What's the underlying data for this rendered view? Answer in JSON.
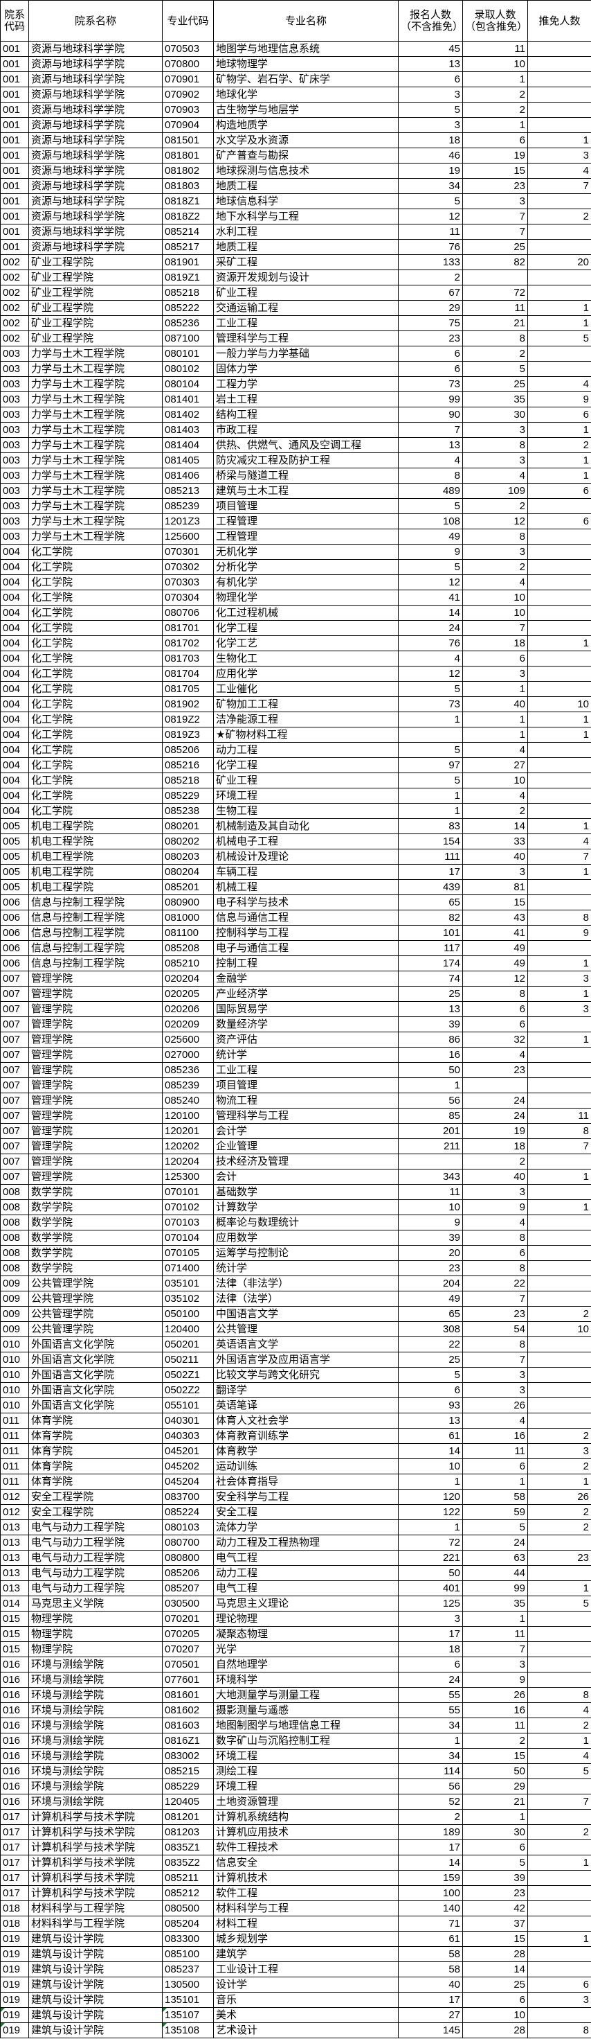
{
  "headers": [
    "院系代码",
    "院系名称",
    "专业代码",
    "专业名称",
    "报名人数（不含推免）",
    "录取人数（包含推免）",
    "推免人数"
  ],
  "marker_color": "#0a7a2a",
  "rows": [
    [
      "001",
      "资源与地球科学学院",
      "070503",
      "地图学与地理信息系统",
      "45",
      "11",
      ""
    ],
    [
      "001",
      "资源与地球科学学院",
      "070800",
      "地球物理学",
      "13",
      "10",
      ""
    ],
    [
      "001",
      "资源与地球科学学院",
      "070901",
      "矿物学、岩石学、矿床学",
      "6",
      "1",
      ""
    ],
    [
      "001",
      "资源与地球科学学院",
      "070902",
      "地球化学",
      "3",
      "2",
      ""
    ],
    [
      "001",
      "资源与地球科学学院",
      "070903",
      "古生物学与地层学",
      "5",
      "2",
      ""
    ],
    [
      "001",
      "资源与地球科学学院",
      "070904",
      "构造地质学",
      "3",
      "1",
      ""
    ],
    [
      "001",
      "资源与地球科学学院",
      "081501",
      "水文学及水资源",
      "18",
      "6",
      "1"
    ],
    [
      "001",
      "资源与地球科学学院",
      "081801",
      "矿产普查与勘探",
      "46",
      "19",
      "3"
    ],
    [
      "001",
      "资源与地球科学学院",
      "081802",
      "地球探测与信息技术",
      "19",
      "15",
      "4"
    ],
    [
      "001",
      "资源与地球科学学院",
      "081803",
      "地质工程",
      "34",
      "23",
      "7"
    ],
    [
      "001",
      "资源与地球科学学院",
      "0818Z1",
      "地球信息科学",
      "5",
      "3",
      ""
    ],
    [
      "001",
      "资源与地球科学学院",
      "0818Z2",
      "地下水科学与工程",
      "12",
      "7",
      "2"
    ],
    [
      "001",
      "资源与地球科学学院",
      "085214",
      "水利工程",
      "11",
      "7",
      ""
    ],
    [
      "001",
      "资源与地球科学学院",
      "085217",
      "地质工程",
      "76",
      "25",
      ""
    ],
    [
      "002",
      "矿业工程学院",
      "081901",
      "采矿工程",
      "133",
      "82",
      "20"
    ],
    [
      "002",
      "矿业工程学院",
      "0819Z1",
      "资源开发规划与设计",
      "2",
      "",
      ""
    ],
    [
      "002",
      "矿业工程学院",
      "085218",
      "矿业工程",
      "67",
      "72",
      ""
    ],
    [
      "002",
      "矿业工程学院",
      "085222",
      "交通运输工程",
      "29",
      "11",
      "1"
    ],
    [
      "002",
      "矿业工程学院",
      "085236",
      "工业工程",
      "75",
      "21",
      "1"
    ],
    [
      "002",
      "矿业工程学院",
      "087100",
      "管理科学与工程",
      "23",
      "8",
      "5"
    ],
    [
      "003",
      "力学与土木工程学院",
      "080101",
      "一般力学与力学基础",
      "6",
      "2",
      ""
    ],
    [
      "003",
      "力学与土木工程学院",
      "080102",
      "固体力学",
      "6",
      "5",
      ""
    ],
    [
      "003",
      "力学与土木工程学院",
      "080104",
      "工程力学",
      "73",
      "25",
      "4"
    ],
    [
      "003",
      "力学与土木工程学院",
      "081401",
      "岩土工程",
      "99",
      "35",
      "9"
    ],
    [
      "003",
      "力学与土木工程学院",
      "081402",
      "结构工程",
      "90",
      "30",
      "6"
    ],
    [
      "003",
      "力学与土木工程学院",
      "081403",
      "市政工程",
      "7",
      "3",
      "1"
    ],
    [
      "003",
      "力学与土木工程学院",
      "081404",
      "供热、供燃气、通风及空调工程",
      "13",
      "8",
      "2"
    ],
    [
      "003",
      "力学与土木工程学院",
      "081405",
      "防灾减灾工程及防护工程",
      "4",
      "3",
      "1"
    ],
    [
      "003",
      "力学与土木工程学院",
      "081406",
      "桥梁与隧道工程",
      "8",
      "4",
      "1"
    ],
    [
      "003",
      "力学与土木工程学院",
      "085213",
      "建筑与土木工程",
      "489",
      "109",
      "6"
    ],
    [
      "003",
      "力学与土木工程学院",
      "085239",
      "项目管理",
      "5",
      "2",
      ""
    ],
    [
      "003",
      "力学与土木工程学院",
      "1201Z3",
      "工程管理",
      "108",
      "12",
      "6"
    ],
    [
      "003",
      "力学与土木工程学院",
      "125600",
      "工程管理",
      "49",
      "8",
      ""
    ],
    [
      "004",
      "化工学院",
      "070301",
      "无机化学",
      "9",
      "3",
      ""
    ],
    [
      "004",
      "化工学院",
      "070302",
      "分析化学",
      "5",
      "2",
      ""
    ],
    [
      "004",
      "化工学院",
      "070303",
      "有机化学",
      "12",
      "4",
      ""
    ],
    [
      "004",
      "化工学院",
      "070304",
      "物理化学",
      "41",
      "10",
      ""
    ],
    [
      "004",
      "化工学院",
      "080706",
      "化工过程机械",
      "14",
      "10",
      ""
    ],
    [
      "004",
      "化工学院",
      "081701",
      "化学工程",
      "24",
      "7",
      ""
    ],
    [
      "004",
      "化工学院",
      "081702",
      "化学工艺",
      "76",
      "18",
      "1"
    ],
    [
      "004",
      "化工学院",
      "081703",
      "生物化工",
      "4",
      "6",
      ""
    ],
    [
      "004",
      "化工学院",
      "081704",
      "应用化学",
      "12",
      "3",
      ""
    ],
    [
      "004",
      "化工学院",
      "081705",
      "工业催化",
      "5",
      "1",
      ""
    ],
    [
      "004",
      "化工学院",
      "081902",
      "矿物加工工程",
      "73",
      "40",
      "10"
    ],
    [
      "004",
      "化工学院",
      "0819Z2",
      "洁净能源工程",
      "1",
      "1",
      "1"
    ],
    [
      "004",
      "化工学院",
      "0819Z3",
      "★矿物材料工程",
      "",
      "1",
      "1"
    ],
    [
      "004",
      "化工学院",
      "085206",
      "动力工程",
      "5",
      "4",
      ""
    ],
    [
      "004",
      "化工学院",
      "085216",
      "化学工程",
      "97",
      "27",
      ""
    ],
    [
      "004",
      "化工学院",
      "085218",
      "矿业工程",
      "5",
      "10",
      ""
    ],
    [
      "004",
      "化工学院",
      "085229",
      "环境工程",
      "1",
      "4",
      ""
    ],
    [
      "004",
      "化工学院",
      "085238",
      "生物工程",
      "1",
      "2",
      ""
    ],
    [
      "005",
      "机电工程学院",
      "080201",
      "机械制造及其自动化",
      "83",
      "14",
      "1"
    ],
    [
      "005",
      "机电工程学院",
      "080202",
      "机械电子工程",
      "154",
      "33",
      "4"
    ],
    [
      "005",
      "机电工程学院",
      "080203",
      "机械设计及理论",
      "111",
      "40",
      "7"
    ],
    [
      "005",
      "机电工程学院",
      "080204",
      "车辆工程",
      "17",
      "3",
      "1"
    ],
    [
      "005",
      "机电工程学院",
      "085201",
      "机械工程",
      "439",
      "81",
      ""
    ],
    [
      "006",
      "信息与控制工程学院",
      "080900",
      "电子科学与技术",
      "65",
      "15",
      ""
    ],
    [
      "006",
      "信息与控制工程学院",
      "081000",
      "信息与通信工程",
      "82",
      "43",
      "8"
    ],
    [
      "006",
      "信息与控制工程学院",
      "081100",
      "控制科学与工程",
      "101",
      "41",
      "9"
    ],
    [
      "006",
      "信息与控制工程学院",
      "085208",
      "电子与通信工程",
      "117",
      "49",
      ""
    ],
    [
      "006",
      "信息与控制工程学院",
      "085210",
      "控制工程",
      "174",
      "49",
      "1"
    ],
    [
      "007",
      "管理学院",
      "020204",
      "金融学",
      "74",
      "12",
      "3"
    ],
    [
      "007",
      "管理学院",
      "020205",
      "产业经济学",
      "25",
      "8",
      "1"
    ],
    [
      "007",
      "管理学院",
      "020206",
      "国际贸易学",
      "13",
      "6",
      "3"
    ],
    [
      "007",
      "管理学院",
      "020209",
      "数量经济学",
      "39",
      "6",
      ""
    ],
    [
      "007",
      "管理学院",
      "025600",
      "资产评估",
      "86",
      "32",
      "1"
    ],
    [
      "007",
      "管理学院",
      "027000",
      "统计学",
      "16",
      "4",
      ""
    ],
    [
      "007",
      "管理学院",
      "085236",
      "工业工程",
      "50",
      "23",
      ""
    ],
    [
      "007",
      "管理学院",
      "085239",
      "项目管理",
      "1",
      "",
      ""
    ],
    [
      "007",
      "管理学院",
      "085240",
      "物流工程",
      "56",
      "24",
      ""
    ],
    [
      "007",
      "管理学院",
      "120100",
      "管理科学与工程",
      "85",
      "24",
      "11"
    ],
    [
      "007",
      "管理学院",
      "120201",
      "会计学",
      "201",
      "19",
      "8"
    ],
    [
      "007",
      "管理学院",
      "120202",
      "企业管理",
      "211",
      "18",
      "7"
    ],
    [
      "007",
      "管理学院",
      "120204",
      "技术经济及管理",
      "",
      "2",
      ""
    ],
    [
      "007",
      "管理学院",
      "125300",
      "会计",
      "343",
      "40",
      "1"
    ],
    [
      "008",
      "数学学院",
      "070101",
      "基础数学",
      "11",
      "3",
      ""
    ],
    [
      "008",
      "数学学院",
      "070102",
      "计算数学",
      "10",
      "9",
      "1"
    ],
    [
      "008",
      "数学学院",
      "070103",
      "概率论与数理统计",
      "9",
      "4",
      ""
    ],
    [
      "008",
      "数学学院",
      "070104",
      "应用数学",
      "39",
      "8",
      ""
    ],
    [
      "008",
      "数学学院",
      "070105",
      "运筹学与控制论",
      "20",
      "6",
      ""
    ],
    [
      "008",
      "数学学院",
      "071400",
      "统计学",
      "23",
      "8",
      ""
    ],
    [
      "009",
      "公共管理学院",
      "035101",
      "法律（非法学）",
      "204",
      "22",
      ""
    ],
    [
      "009",
      "公共管理学院",
      "035102",
      "法律（法学）",
      "49",
      "7",
      ""
    ],
    [
      "009",
      "公共管理学院",
      "050100",
      "中国语言文学",
      "65",
      "23",
      "2"
    ],
    [
      "009",
      "公共管理学院",
      "120400",
      "公共管理",
      "308",
      "54",
      "10"
    ],
    [
      "010",
      "外国语言文化学院",
      "050201",
      "英语语言文学",
      "22",
      "8",
      ""
    ],
    [
      "010",
      "外国语言文化学院",
      "050211",
      "外国语言学及应用语言学",
      "25",
      "7",
      ""
    ],
    [
      "010",
      "外国语言文化学院",
      "0502Z1",
      "比较文学与跨文化研究",
      "5",
      "3",
      ""
    ],
    [
      "010",
      "外国语言文化学院",
      "0502Z2",
      "翻译学",
      "6",
      "3",
      ""
    ],
    [
      "010",
      "外国语言文化学院",
      "055101",
      "英语笔译",
      "93",
      "26",
      ""
    ],
    [
      "011",
      "体育学院",
      "040301",
      "体育人文社会学",
      "13",
      "4",
      ""
    ],
    [
      "011",
      "体育学院",
      "040303",
      "体育教育训练学",
      "61",
      "16",
      "2"
    ],
    [
      "011",
      "体育学院",
      "045201",
      "体育教学",
      "14",
      "11",
      "3"
    ],
    [
      "011",
      "体育学院",
      "045202",
      "运动训练",
      "10",
      "6",
      "2"
    ],
    [
      "011",
      "体育学院",
      "045204",
      "社会体育指导",
      "1",
      "1",
      "1"
    ],
    [
      "012",
      "安全工程学院",
      "083700",
      "安全科学与工程",
      "120",
      "58",
      "26"
    ],
    [
      "012",
      "安全工程学院",
      "085224",
      "安全工程",
      "122",
      "59",
      "2"
    ],
    [
      "013",
      "电气与动力工程学院",
      "080103",
      "流体力学",
      "1",
      "5",
      "2"
    ],
    [
      "013",
      "电气与动力工程学院",
      "080700",
      "动力工程及工程热物理",
      "72",
      "24",
      ""
    ],
    [
      "013",
      "电气与动力工程学院",
      "080800",
      "电气工程",
      "221",
      "63",
      "23"
    ],
    [
      "013",
      "电气与动力工程学院",
      "085206",
      "动力工程",
      "50",
      "44",
      ""
    ],
    [
      "013",
      "电气与动力工程学院",
      "085207",
      "电气工程",
      "401",
      "99",
      "1"
    ],
    [
      "014",
      "马克思主义学院",
      "030500",
      "马克思主义理论",
      "125",
      "35",
      "5"
    ],
    [
      "015",
      "物理学院",
      "070201",
      "理论物理",
      "3",
      "1",
      ""
    ],
    [
      "015",
      "物理学院",
      "070205",
      "凝聚态物理",
      "17",
      "11",
      ""
    ],
    [
      "015",
      "物理学院",
      "070207",
      "光学",
      "18",
      "7",
      ""
    ],
    [
      "016",
      "环境与测绘学院",
      "070501",
      "自然地理学",
      "6",
      "3",
      ""
    ],
    [
      "016",
      "环境与测绘学院",
      "077601",
      "环境科学",
      "24",
      "9",
      ""
    ],
    [
      "016",
      "环境与测绘学院",
      "081601",
      "大地测量学与测量工程",
      "55",
      "26",
      "8"
    ],
    [
      "016",
      "环境与测绘学院",
      "081602",
      "摄影测量与遥感",
      "55",
      "16",
      "4"
    ],
    [
      "016",
      "环境与测绘学院",
      "081603",
      "地图制图学与地理信息工程",
      "34",
      "11",
      "2"
    ],
    [
      "016",
      "环境与测绘学院",
      "0816Z1",
      "数字矿山与沉陷控制工程",
      "1",
      "2",
      "1"
    ],
    [
      "016",
      "环境与测绘学院",
      "083002",
      "环境工程",
      "34",
      "15",
      "4"
    ],
    [
      "016",
      "环境与测绘学院",
      "085215",
      "测绘工程",
      "114",
      "50",
      "5"
    ],
    [
      "016",
      "环境与测绘学院",
      "085229",
      "环境工程",
      "56",
      "29",
      ""
    ],
    [
      "016",
      "环境与测绘学院",
      "120405",
      "土地资源管理",
      "52",
      "21",
      "7"
    ],
    [
      "017",
      "计算机科学与技术学院",
      "081201",
      "计算机系统结构",
      "2",
      "1",
      ""
    ],
    [
      "017",
      "计算机科学与技术学院",
      "081203",
      "计算机应用技术",
      "189",
      "30",
      "2"
    ],
    [
      "017",
      "计算机科学与技术学院",
      "0835Z1",
      "软件工程技术",
      "17",
      "6",
      ""
    ],
    [
      "017",
      "计算机科学与技术学院",
      "0835Z2",
      "信息安全",
      "14",
      "5",
      "1"
    ],
    [
      "017",
      "计算机科学与技术学院",
      "085211",
      "计算机技术",
      "159",
      "39",
      ""
    ],
    [
      "017",
      "计算机科学与技术学院",
      "085212",
      "软件工程",
      "100",
      "23",
      ""
    ],
    [
      "018",
      "材料科学与工程学院",
      "080500",
      "材料科学与工程",
      "140",
      "42",
      ""
    ],
    [
      "018",
      "材料科学与工程学院",
      "085204",
      "材料工程",
      "71",
      "37",
      ""
    ],
    [
      "019",
      "建筑与设计学院",
      "083300",
      "城乡规划学",
      "61",
      "15",
      "1"
    ],
    [
      "019",
      "建筑与设计学院",
      "085100",
      "建筑学",
      "58",
      "28",
      ""
    ],
    [
      "019",
      "建筑与设计学院",
      "085237",
      "工业设计工程",
      "58",
      "14",
      ""
    ],
    [
      "019",
      "建筑与设计学院",
      "130500",
      "设计学",
      "40",
      "25",
      "6"
    ],
    [
      "019",
      "建筑与设计学院",
      "135101",
      "音乐",
      "17",
      "6",
      "3"
    ],
    [
      "019",
      "建筑与设计学院",
      "135107",
      "美术",
      "27",
      "10",
      ""
    ],
    [
      "019",
      "建筑与设计学院",
      "135108",
      "艺术设计",
      "145",
      "28",
      "8"
    ]
  ]
}
